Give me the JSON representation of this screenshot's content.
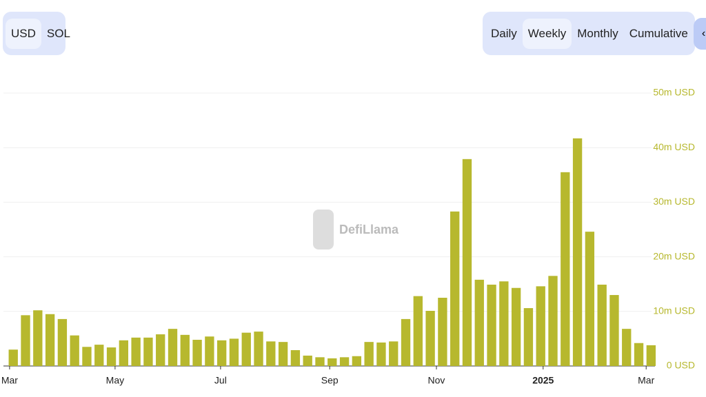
{
  "controls": {
    "currency": [
      "USD",
      "SOL"
    ],
    "period": [
      "Daily",
      "Weekly",
      "Monthly",
      "Cumulative"
    ],
    "embed": "‹›"
  },
  "watermark": "DefiLlama",
  "chart_data": {
    "type": "bar",
    "color": "#b7b82e",
    "grid": true,
    "x": [
      0,
      1,
      2,
      3,
      4,
      5,
      6,
      7,
      8,
      9,
      10,
      11,
      12,
      13,
      14,
      15,
      16,
      17,
      18,
      19,
      20,
      21,
      22,
      23,
      24,
      25,
      26,
      27,
      28,
      29,
      30,
      31,
      32,
      33,
      34,
      35,
      36,
      37,
      38,
      39,
      40,
      41,
      42,
      43,
      44,
      45,
      46,
      47,
      48,
      49,
      50,
      51,
      52
    ],
    "values": [
      3.0,
      9.3,
      10.2,
      9.5,
      8.6,
      5.6,
      3.5,
      3.9,
      3.4,
      4.7,
      5.2,
      5.2,
      5.8,
      6.8,
      5.7,
      4.8,
      5.4,
      4.7,
      5.0,
      6.1,
      6.3,
      4.5,
      4.4,
      2.9,
      1.9,
      1.6,
      1.4,
      1.6,
      1.8,
      4.4,
      4.3,
      4.5,
      8.6,
      12.8,
      10.1,
      12.5,
      28.3,
      37.9,
      15.8,
      14.9,
      15.5,
      14.3,
      10.6,
      14.6,
      16.5,
      35.5,
      41.7,
      24.6,
      14.9,
      13.0,
      6.8,
      4.2,
      3.8
    ],
    "xlim": [
      -0.8,
      52.6
    ],
    "xticks": [
      {
        "value": -0.3,
        "label": "Mar"
      },
      {
        "value": 8.3,
        "label": "May"
      },
      {
        "value": 16.9,
        "label": "Jul"
      },
      {
        "value": 25.8,
        "label": "Sep"
      },
      {
        "value": 34.5,
        "label": "Nov"
      },
      {
        "value": 43.2,
        "label": "2025"
      },
      {
        "value": 51.6,
        "label": "Mar"
      }
    ],
    "ylim": [
      0,
      50
    ],
    "yticks": [
      {
        "value": 0,
        "label": "0 USD"
      },
      {
        "value": 10,
        "label": "10m USD"
      },
      {
        "value": 20,
        "label": "20m USD"
      },
      {
        "value": 30,
        "label": "30m USD"
      },
      {
        "value": 40,
        "label": "40m USD"
      },
      {
        "value": 50,
        "label": "50m USD"
      }
    ]
  }
}
